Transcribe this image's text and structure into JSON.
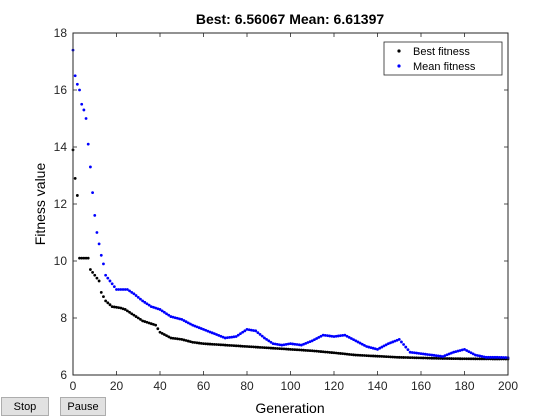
{
  "chart_data": {
    "type": "scatter",
    "title": "Best: 6.56067 Mean: 6.61397",
    "xlabel": "Generation",
    "ylabel": "Fitness value",
    "xlim": [
      0,
      200
    ],
    "ylim": [
      6,
      18
    ],
    "xticks": [
      0,
      20,
      40,
      60,
      80,
      100,
      120,
      140,
      160,
      180,
      200
    ],
    "yticks": [
      6,
      8,
      10,
      12,
      14,
      16,
      18
    ],
    "grid": false,
    "legend_position": "top-right",
    "series": [
      {
        "name": "Best fitness",
        "color": "#000000",
        "anchors": [
          [
            0,
            13.9
          ],
          [
            1,
            12.9
          ],
          [
            2,
            12.3
          ],
          [
            3,
            10.1
          ],
          [
            5,
            10.1
          ],
          [
            7,
            10.1
          ],
          [
            8,
            9.7
          ],
          [
            10,
            9.5
          ],
          [
            12,
            9.3
          ],
          [
            13,
            8.9
          ],
          [
            15,
            8.6
          ],
          [
            18,
            8.4
          ],
          [
            22,
            8.35
          ],
          [
            24,
            8.3
          ],
          [
            28,
            8.1
          ],
          [
            32,
            7.9
          ],
          [
            38,
            7.75
          ],
          [
            40,
            7.5
          ],
          [
            45,
            7.3
          ],
          [
            50,
            7.25
          ],
          [
            55,
            7.15
          ],
          [
            60,
            7.1
          ],
          [
            70,
            7.05
          ],
          [
            80,
            7.0
          ],
          [
            90,
            6.95
          ],
          [
            100,
            6.9
          ],
          [
            110,
            6.85
          ],
          [
            120,
            6.78
          ],
          [
            130,
            6.7
          ],
          [
            140,
            6.66
          ],
          [
            150,
            6.62
          ],
          [
            160,
            6.6
          ],
          [
            170,
            6.58
          ],
          [
            180,
            6.57
          ],
          [
            190,
            6.565
          ],
          [
            200,
            6.56
          ]
        ]
      },
      {
        "name": "Mean fitness",
        "color": "#0000ff",
        "anchors": [
          [
            0,
            17.4
          ],
          [
            1,
            16.5
          ],
          [
            2,
            16.2
          ],
          [
            3,
            16.0
          ],
          [
            4,
            15.5
          ],
          [
            5,
            15.3
          ],
          [
            6,
            15.0
          ],
          [
            7,
            14.1
          ],
          [
            8,
            13.3
          ],
          [
            9,
            12.4
          ],
          [
            10,
            11.6
          ],
          [
            11,
            11.0
          ],
          [
            12,
            10.6
          ],
          [
            13,
            10.2
          ],
          [
            14,
            9.9
          ],
          [
            15,
            9.5
          ],
          [
            18,
            9.2
          ],
          [
            20,
            9.0
          ],
          [
            25,
            9.0
          ],
          [
            28,
            8.85
          ],
          [
            32,
            8.6
          ],
          [
            36,
            8.4
          ],
          [
            40,
            8.3
          ],
          [
            45,
            8.05
          ],
          [
            50,
            7.95
          ],
          [
            55,
            7.75
          ],
          [
            60,
            7.6
          ],
          [
            65,
            7.45
          ],
          [
            70,
            7.3
          ],
          [
            75,
            7.35
          ],
          [
            80,
            7.6
          ],
          [
            84,
            7.55
          ],
          [
            88,
            7.3
          ],
          [
            92,
            7.1
          ],
          [
            96,
            7.05
          ],
          [
            100,
            7.1
          ],
          [
            105,
            7.05
          ],
          [
            110,
            7.2
          ],
          [
            115,
            7.4
          ],
          [
            120,
            7.35
          ],
          [
            125,
            7.4
          ],
          [
            130,
            7.2
          ],
          [
            135,
            7.0
          ],
          [
            140,
            6.9
          ],
          [
            145,
            7.1
          ],
          [
            150,
            7.25
          ],
          [
            155,
            6.8
          ],
          [
            160,
            6.75
          ],
          [
            165,
            6.7
          ],
          [
            170,
            6.65
          ],
          [
            175,
            6.8
          ],
          [
            180,
            6.9
          ],
          [
            185,
            6.7
          ],
          [
            190,
            6.62
          ],
          [
            195,
            6.62
          ],
          [
            200,
            6.61
          ]
        ]
      }
    ]
  },
  "controls": {
    "stop_label": "Stop",
    "pause_label": "Pause"
  }
}
